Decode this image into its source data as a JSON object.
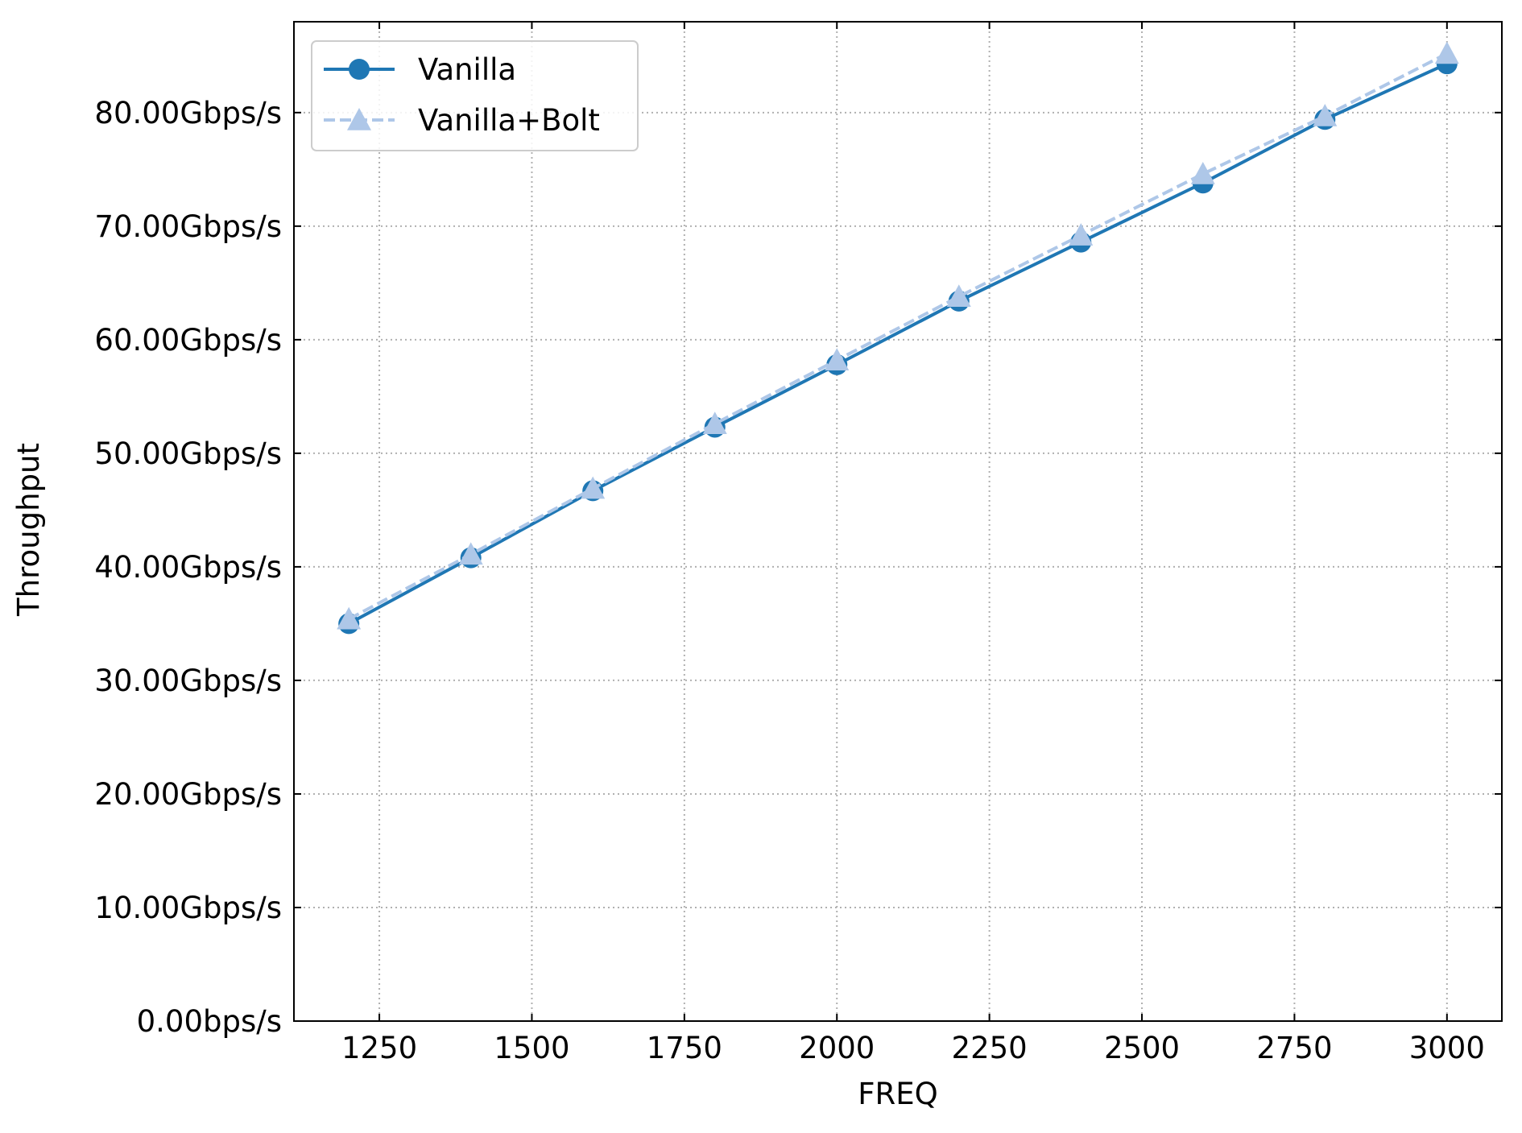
{
  "chart_data": {
    "type": "line",
    "title": "",
    "xlabel": "FREQ",
    "ylabel": "Throughput",
    "x": [
      1200,
      1400,
      1600,
      1800,
      2000,
      2200,
      2400,
      2600,
      2800,
      3000
    ],
    "xlim": [
      1110,
      3090
    ],
    "ylim": [
      0,
      88
    ],
    "xticks": [
      1250,
      1500,
      1750,
      2000,
      2250,
      2500,
      2750,
      3000
    ],
    "xtick_labels": [
      "1250",
      "1500",
      "1750",
      "2000",
      "2250",
      "2500",
      "2750",
      "3000"
    ],
    "yticks": [
      0,
      10,
      20,
      30,
      40,
      50,
      60,
      70,
      80
    ],
    "ytick_labels": [
      "0.00bps/s",
      "10.00Gbps/s",
      "20.00Gbps/s",
      "30.00Gbps/s",
      "40.00Gbps/s",
      "50.00Gbps/s",
      "60.00Gbps/s",
      "70.00Gbps/s",
      "80.00Gbps/s"
    ],
    "grid": true,
    "legend_position": "upper-left",
    "series": [
      {
        "name": "Vanilla",
        "values": [
          35.0,
          40.8,
          46.7,
          52.3,
          57.8,
          63.4,
          68.6,
          73.8,
          79.4,
          84.3
        ],
        "color": "#1f77b4",
        "marker": "circle",
        "line_style": "solid"
      },
      {
        "name": "Vanilla+Bolt",
        "values": [
          35.4,
          41.1,
          46.9,
          52.6,
          58.2,
          63.8,
          69.2,
          74.6,
          79.7,
          85.2
        ],
        "color": "#aec7e8",
        "marker": "triangle",
        "line_style": "dashed"
      }
    ]
  }
}
